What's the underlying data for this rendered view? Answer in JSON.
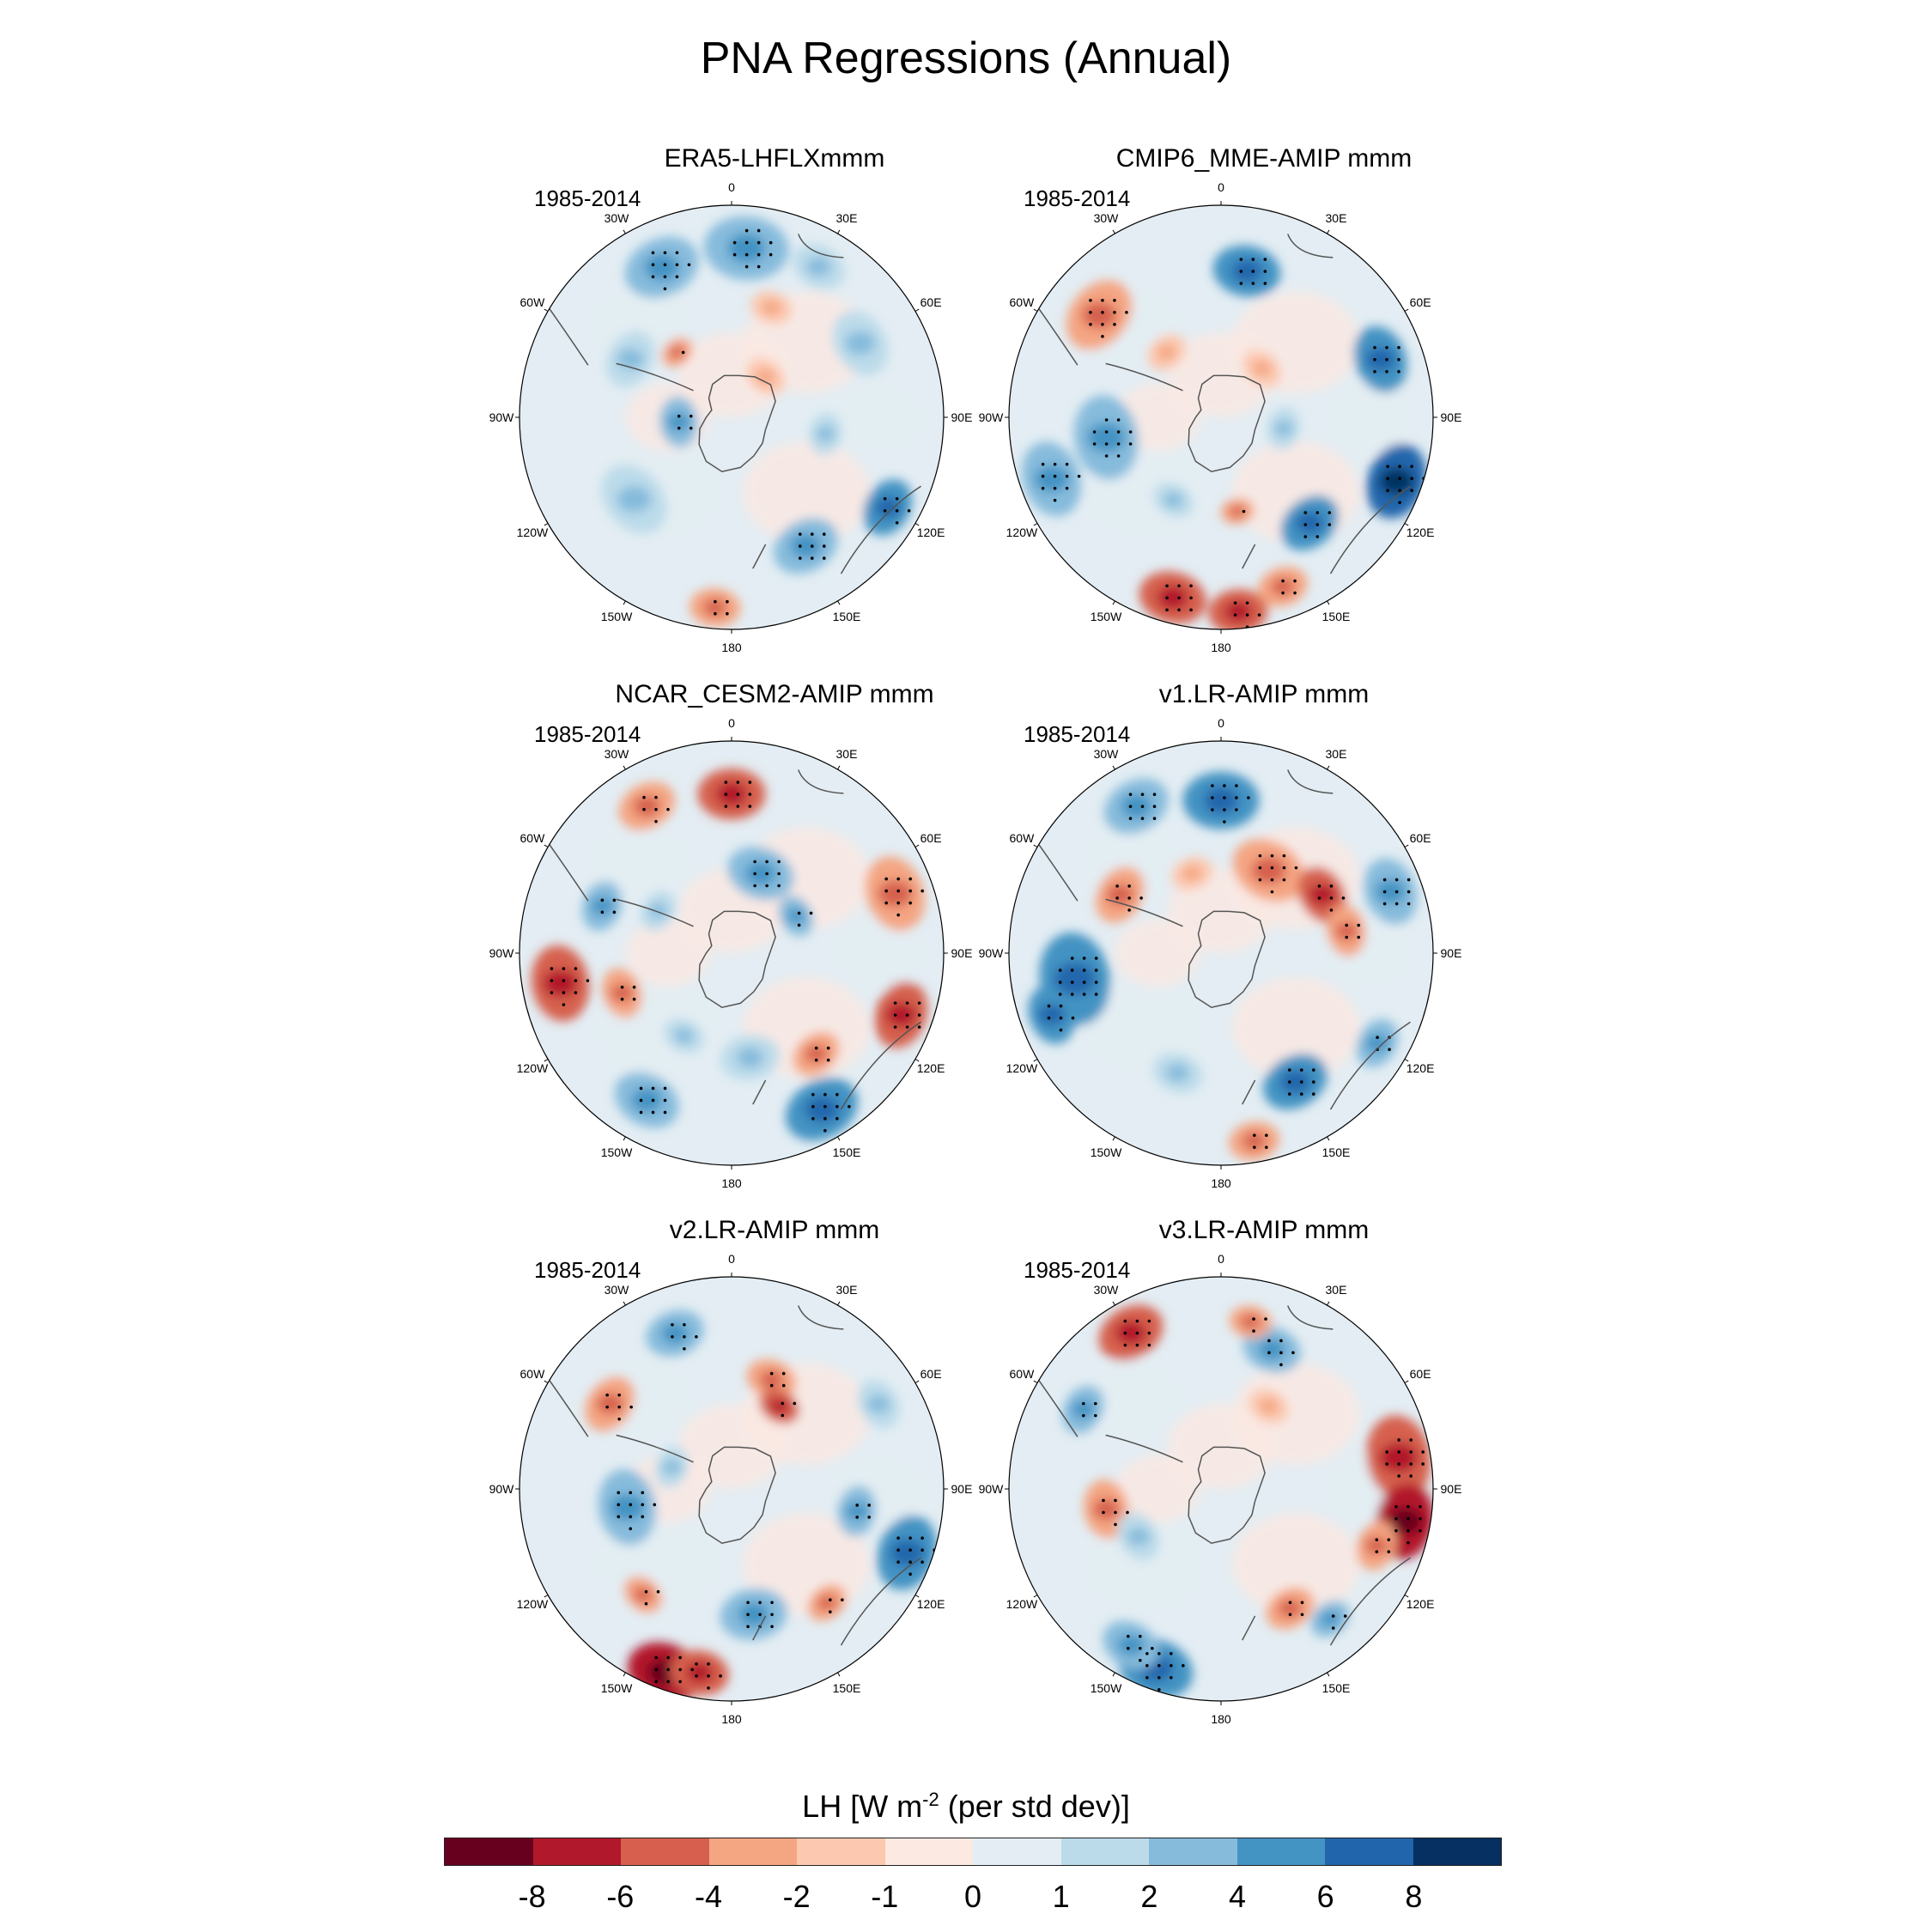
{
  "figure_title": "PNA Regressions (Annual)",
  "colorbar": {
    "title": "LH [W m",
    "title_sup": "-2",
    "title_suffix": " (per std dev)]",
    "colors": [
      "#67001f",
      "#b2182b",
      "#d6604d",
      "#f4a582",
      "#fcc9b0",
      "#fbe9e2",
      "#e3edf3",
      "#bcdbea",
      "#86bbdc",
      "#4393c3",
      "#2166ac",
      "#053061"
    ],
    "ticks": [
      "-8",
      "-6",
      "-4",
      "-2",
      "-1",
      "0",
      "1",
      "2",
      "4",
      "6",
      "8"
    ]
  },
  "lon_labels": [
    "0",
    "30E",
    "60E",
    "90E",
    "120E",
    "150E",
    "180",
    "150W",
    "120W",
    "90W",
    "60W",
    "30W"
  ],
  "panels": [
    {
      "title": "ERA5-LHFLXmmm",
      "period": "1985-2014",
      "pattern": "era5"
    },
    {
      "title": "CMIP6_MME-AMIP  mmm",
      "period": "1985-2014",
      "pattern": "cmip6"
    },
    {
      "title": "NCAR_CESM2-AMIP  mmm",
      "period": "1985-2014",
      "pattern": "cesm2"
    },
    {
      "title": "v1.LR-AMIP  mmm",
      "period": "1985-2014",
      "pattern": "v1"
    },
    {
      "title": "v2.LR-AMIP  mmm",
      "period": "1985-2014",
      "pattern": "v2"
    },
    {
      "title": "v3.LR-AMIP  mmm",
      "period": "1985-2014",
      "pattern": "v3"
    }
  ],
  "chart_data": {
    "type": "heatmap",
    "title": "PNA Regressions (Annual)",
    "projection": "south-polar-stereographic",
    "variable": "LH [W m-2 (per std dev)]",
    "contour_levels": [
      -8,
      -6,
      -4,
      -2,
      -1,
      0,
      1,
      2,
      4,
      6,
      8
    ],
    "stippling": "significant regions",
    "models": [
      "ERA5-LHFLXmmm",
      "CMIP6_MME-AMIP  mmm",
      "NCAR_CESM2-AMIP  mmm",
      "v1.LR-AMIP  mmm",
      "v2.LR-AMIP  mmm",
      "v3.LR-AMIP  mmm"
    ],
    "period": "1985-2014"
  }
}
